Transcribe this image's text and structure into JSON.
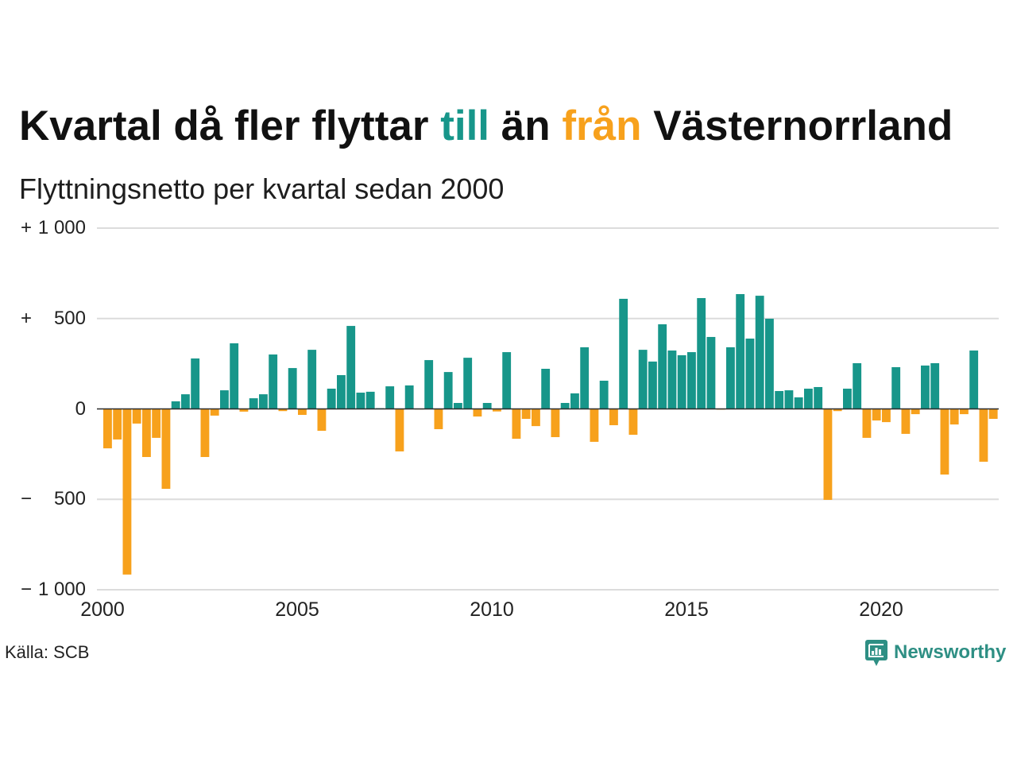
{
  "chart_data": {
    "type": "bar",
    "title": {
      "lead": "Kvartal då fler flyttar",
      "positive_word": "till",
      "middle": "än",
      "negative_word": "från",
      "tail": "Västernorrland"
    },
    "subtitle": "Flyttningsnetto per kvartal sedan 2000",
    "x_ticks": [
      "2000",
      "2005",
      "2010",
      "2015",
      "2020"
    ],
    "y_ticks": [
      {
        "value": 1000,
        "label": "+ 1 000"
      },
      {
        "value": 500,
        "label": "+ 500"
      },
      {
        "value": 0,
        "label": "0"
      },
      {
        "value": -500,
        "label": "− 500"
      },
      {
        "value": -1000,
        "label": "−1 000"
      }
    ],
    "xlim": [
      2000,
      2023
    ],
    "ylim": [
      -1000,
      1000
    ],
    "grid": true,
    "legend": "none",
    "x": [
      "2000-Q1",
      "2000-Q2",
      "2000-Q3",
      "2000-Q4",
      "2001-Q1",
      "2001-Q2",
      "2001-Q3",
      "2001-Q4",
      "2002-Q1",
      "2002-Q2",
      "2002-Q3",
      "2002-Q4",
      "2003-Q1",
      "2003-Q2",
      "2003-Q3",
      "2003-Q4",
      "2004-Q1",
      "2004-Q2",
      "2004-Q3",
      "2004-Q4",
      "2005-Q1",
      "2005-Q2",
      "2005-Q3",
      "2005-Q4",
      "2006-Q1",
      "2006-Q2",
      "2006-Q3",
      "2006-Q4",
      "2007-Q1",
      "2007-Q2",
      "2007-Q3",
      "2007-Q4",
      "2008-Q1",
      "2008-Q2",
      "2008-Q3",
      "2008-Q4",
      "2009-Q1",
      "2009-Q2",
      "2009-Q3",
      "2009-Q4",
      "2010-Q1",
      "2010-Q2",
      "2010-Q3",
      "2010-Q4",
      "2011-Q1",
      "2011-Q2",
      "2011-Q3",
      "2011-Q4",
      "2012-Q1",
      "2012-Q2",
      "2012-Q3",
      "2012-Q4",
      "2013-Q1",
      "2013-Q2",
      "2013-Q3",
      "2013-Q4",
      "2014-Q1",
      "2014-Q2",
      "2014-Q3",
      "2014-Q4",
      "2015-Q1",
      "2015-Q2",
      "2015-Q3",
      "2015-Q4",
      "2016-Q1",
      "2016-Q2",
      "2016-Q3",
      "2016-Q4",
      "2017-Q1",
      "2017-Q2",
      "2017-Q3",
      "2017-Q4",
      "2018-Q1",
      "2018-Q2",
      "2018-Q3",
      "2018-Q4",
      "2019-Q1",
      "2019-Q2",
      "2019-Q3",
      "2019-Q4",
      "2020-Q1",
      "2020-Q2",
      "2020-Q3",
      "2020-Q4",
      "2021-Q1",
      "2021-Q2",
      "2021-Q3",
      "2021-Q4",
      "2022-Q1",
      "2022-Q2",
      "2022-Q3",
      "2022-Q4"
    ],
    "values": [
      -218,
      -169,
      -916,
      -81,
      -266,
      -160,
      -442,
      42,
      81,
      279,
      -266,
      -37,
      103,
      363,
      -15,
      59,
      81,
      301,
      -12,
      226,
      -33,
      327,
      -121,
      112,
      187,
      459,
      90,
      95,
      4,
      125,
      -235,
      130,
      -3,
      270,
      -112,
      204,
      33,
      283,
      -42,
      33,
      -14,
      314,
      -165,
      -55,
      -95,
      222,
      -156,
      33,
      86,
      341,
      -182,
      156,
      -90,
      609,
      -143,
      327,
      262,
      468,
      323,
      297,
      314,
      613,
      398,
      -4,
      341,
      635,
      389,
      626,
      499,
      99,
      103,
      64,
      112,
      121,
      -503,
      -12,
      112,
      253,
      -160,
      -64,
      -73,
      231,
      -138,
      -29,
      240,
      253,
      -363,
      -86,
      -29,
      323,
      -292,
      -55
    ],
    "colors": {
      "positive": "#17968a",
      "negative": "#f7a11c",
      "grid": "#dcdcdc",
      "zero_line": "#2b2b2b"
    }
  },
  "source": "Källa: SCB",
  "logo": {
    "text": "Newsworthy",
    "icon": "newsworthy-logo-icon",
    "color": "#2e8f84"
  }
}
